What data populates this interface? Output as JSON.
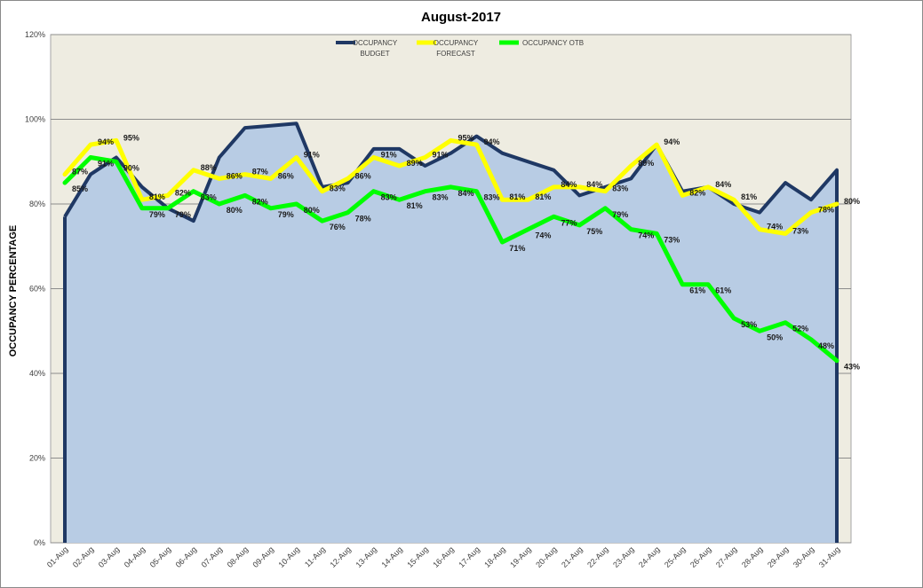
{
  "chart_data": {
    "type": "line",
    "title": "August-2017",
    "ylabel": "OCCUPANCY PERCENTAGE",
    "xlabel": "",
    "ylim": [
      0,
      120
    ],
    "y_ticks": [
      "0%",
      "20%",
      "40%",
      "60%",
      "80%",
      "100%",
      "120%"
    ],
    "grid": true,
    "legend_position": "top-center",
    "plot_background": "#eeece1",
    "categories": [
      "01-Aug",
      "02-Aug",
      "03-Aug",
      "04-Aug",
      "05-Aug",
      "06-Aug",
      "07-Aug",
      "08-Aug",
      "09-Aug",
      "10-Aug",
      "11-Aug",
      "12-Aug",
      "13-Aug",
      "14-Aug",
      "15-Aug",
      "16-Aug",
      "17-Aug",
      "18-Aug",
      "19-Aug",
      "20-Aug",
      "21-Aug",
      "22-Aug",
      "23-Aug",
      "24-Aug",
      "25-Aug",
      "26-Aug",
      "27-Aug",
      "28-Aug",
      "29-Aug",
      "30-Aug",
      "31-Aug"
    ],
    "series": [
      {
        "name": "OCCUPANCY BUDGET",
        "legend_lines": [
          "OCCUPANCY",
          "BUDGET"
        ],
        "style": "area",
        "line_color": "#1f3864",
        "fill_color": "#b8cce4",
        "values": [
          77,
          87,
          91,
          84,
          79,
          76,
          91,
          98,
          98.5,
          99,
          84,
          85,
          93,
          93,
          89,
          92,
          96,
          92,
          90,
          88,
          82,
          84,
          86,
          94,
          83,
          84,
          80,
          78,
          85,
          81,
          88
        ]
      },
      {
        "name": "OCCUPANCY FORECAST",
        "legend_lines": [
          "OCCUPANCY",
          "FORECAST"
        ],
        "style": "line",
        "line_color": "#ffff00",
        "values": [
          87,
          94,
          95,
          81,
          82,
          88,
          86,
          87,
          86,
          91,
          83,
          86,
          91,
          89,
          91,
          95,
          94,
          81,
          81,
          84,
          84,
          83,
          89,
          94,
          82,
          84,
          81,
          74,
          73,
          78,
          80
        ],
        "labels": [
          "87%",
          "94%",
          "95%",
          "81%",
          "82%",
          "88%",
          "86%",
          "87%",
          "86%",
          "91%",
          "83%",
          "86%",
          "91%",
          "89%",
          "91%",
          "95%",
          "94%",
          "81%",
          "81%",
          "84%",
          "84%",
          "83%",
          "89%",
          "94%",
          "82%",
          "84%",
          "81%",
          "74%",
          "73%",
          "78%",
          "80%"
        ]
      },
      {
        "name": "OCCUPANCY OTB",
        "legend_lines": [
          "OCCUPANCY OTB"
        ],
        "style": "line",
        "line_color": "#00ff00",
        "values": [
          85,
          91,
          90,
          79,
          79,
          83,
          80,
          82,
          79,
          80,
          76,
          78,
          83,
          81,
          83,
          84,
          83,
          71,
          74,
          77,
          75,
          79,
          74,
          73,
          61,
          61,
          53,
          50,
          52,
          48,
          43
        ],
        "labels": [
          "85%",
          "91%",
          "90%",
          "79%",
          "79%",
          "83%",
          "80%",
          "82%",
          "79%",
          "80%",
          "76%",
          "78%",
          "83%",
          "81%",
          "83%",
          "84%",
          "83%",
          "71%",
          "74%",
          "77%",
          "75%",
          "79%",
          "74%",
          "73%",
          "61%",
          "61%",
          "53%",
          "50%",
          "52%",
          "48%",
          "43%"
        ]
      }
    ]
  }
}
